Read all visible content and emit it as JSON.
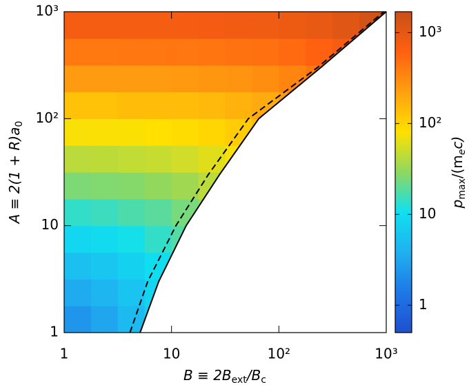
{
  "chart_data": {
    "type": "heatmap",
    "x_label": [
      "B ≡ 2B",
      "ext",
      "/B",
      "c"
    ],
    "y_label": [
      "A ≡ 2(1 + R)a",
      "0"
    ],
    "colorbar_label": [
      "p",
      "max",
      "/(m",
      "e",
      "c)"
    ],
    "log_x": true,
    "log_y": true,
    "log_color": true,
    "xlim": [
      1,
      1000
    ],
    "ylim": [
      1,
      1000
    ],
    "xticks": [
      1,
      10,
      {
        "value": 100,
        "label": "10²"
      },
      {
        "value": 1000,
        "label": "10³"
      }
    ],
    "yticks": [
      1,
      10,
      {
        "value": 100,
        "label": "10²"
      },
      {
        "value": 1000,
        "label": "10³"
      }
    ],
    "x_bins": [
      1,
      1.78,
      3.16,
      5.62,
      10,
      17.8,
      31.6,
      56.2,
      100,
      178,
      316,
      562,
      1000
    ],
    "y_bins": [
      1,
      1.78,
      3.16,
      5.62,
      10,
      17.8,
      31.6,
      56.2,
      100,
      178,
      316,
      562,
      1000
    ],
    "z": [
      [
        2.4,
        3.2,
        4.7,
        7.3,
        null,
        null,
        null,
        null,
        null,
        null,
        null,
        null
      ],
      [
        3.4,
        4.3,
        5.8,
        8.4,
        null,
        null,
        null,
        null,
        null,
        null,
        null,
        null
      ],
      [
        5.3,
        6.1,
        7.6,
        10,
        15,
        null,
        null,
        null,
        null,
        null,
        null,
        null
      ],
      [
        8.6,
        9.4,
        11,
        14,
        18,
        null,
        null,
        null,
        null,
        null,
        null,
        null
      ],
      [
        14,
        15,
        17,
        19,
        24,
        32,
        null,
        null,
        null,
        null,
        null,
        null
      ],
      [
        25,
        26,
        27,
        30,
        34,
        43,
        null,
        null,
        null,
        null,
        null,
        null
      ],
      [
        43,
        44,
        46,
        48,
        53,
        61,
        76,
        null,
        null,
        null,
        null,
        null
      ],
      [
        76,
        77,
        78,
        81,
        86,
        94,
        110,
        140,
        null,
        null,
        null,
        null
      ],
      [
        130,
        130,
        140,
        140,
        140,
        150,
        170,
        190,
        240,
        null,
        null,
        null
      ],
      [
        240,
        240,
        240,
        240,
        250,
        260,
        270,
        300,
        340,
        430,
        null,
        null
      ],
      [
        420,
        420,
        430,
        430,
        430,
        440,
        460,
        480,
        530,
        610,
        760,
        null
      ],
      [
        750,
        750,
        750,
        760,
        760,
        770,
        780,
        810,
        860,
        940,
        1100,
        1400
      ]
    ],
    "clim": [
      0.5,
      1700
    ],
    "cticks": [
      1,
      10,
      {
        "value": 100,
        "label": "10²"
      },
      {
        "value": 1000,
        "label": "10³"
      }
    ],
    "colormap": [
      "#1f4fd0",
      "#1e78e8",
      "#20b0f0",
      "#10e0f0",
      "#8fd860",
      "#ffe000",
      "#ffa010",
      "#ff6010",
      "#c85018"
    ],
    "curves": [
      {
        "style": "solid",
        "color": "#000000",
        "x": [
          5.1,
          7.6,
          13.7,
          28,
          65,
          245,
          1000
        ],
        "y": [
          1,
          3,
          10,
          30,
          100,
          300,
          1000
        ]
      },
      {
        "style": "dashed",
        "color": "#000000",
        "x": [
          4.1,
          6.0,
          11,
          22,
          52,
          228,
          950
        ],
        "y": [
          1,
          3,
          10,
          30,
          100,
          300,
          1000
        ]
      }
    ]
  }
}
